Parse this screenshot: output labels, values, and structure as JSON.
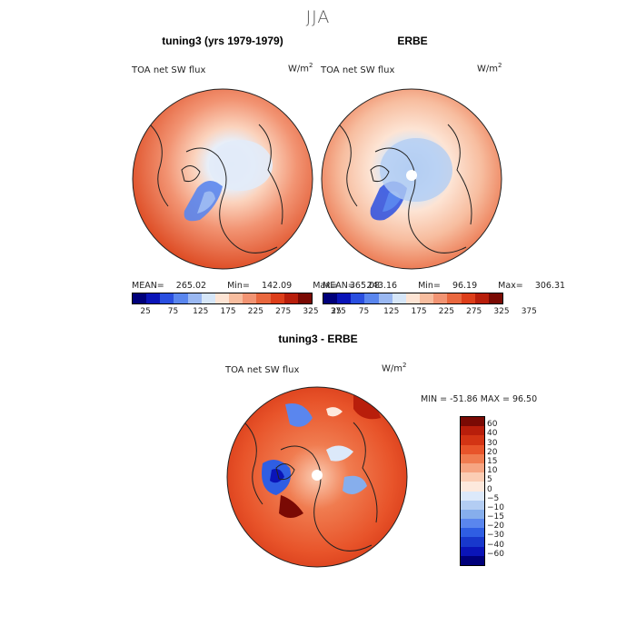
{
  "title": "JJA",
  "panels": [
    {
      "title": "tuning3 (yrs 1979-1979)",
      "variable": "TOA net SW flux",
      "units": "W/m",
      "mean_label": "MEAN=",
      "mean": "265.02",
      "min_label": "Min=",
      "min": "142.09",
      "max_label": "Max=",
      "max": "365.08"
    },
    {
      "title": "ERBE",
      "variable": "TOA net SW flux",
      "units": "W/m",
      "mean_label": "MEAN=",
      "mean": "243.16",
      "min_label": "Min=",
      "min": "96.19",
      "max_label": "Max=",
      "max": "306.31"
    },
    {
      "title": "tuning3 - ERBE",
      "variable": "TOA net SW flux",
      "units": "W/m",
      "minmax_text": "MIN = -51.86 MAX = 96.50"
    }
  ],
  "units_superscript": "2",
  "colorbar_abs": {
    "colors": [
      "#00007a",
      "#0a14b8",
      "#2a4fe0",
      "#5a86ee",
      "#9ab8f2",
      "#d6e6f8",
      "#fde4d4",
      "#f7bd9f",
      "#f29473",
      "#e9683f",
      "#dd3e1a",
      "#b81e0b",
      "#7a0a04"
    ],
    "ticks": [
      "25",
      "75",
      "125",
      "175",
      "225",
      "275",
      "325",
      "375"
    ]
  },
  "colorbar_diff": {
    "colors": [
      "#7a0a04",
      "#b81e0b",
      "#d33414",
      "#e8542a",
      "#f07c50",
      "#f6a582",
      "#fbcdb4",
      "#fde9dd",
      "#dce9fa",
      "#b3cdf3",
      "#86aeec",
      "#5a86ee",
      "#2f5ee3",
      "#1838cc",
      "#0a14b8",
      "#00007a"
    ],
    "ticks": [
      "60",
      "40",
      "30",
      "20",
      "15",
      "10",
      "5",
      "0",
      "−5",
      "−10",
      "−15",
      "−20",
      "−30",
      "−40",
      "−60"
    ]
  }
}
